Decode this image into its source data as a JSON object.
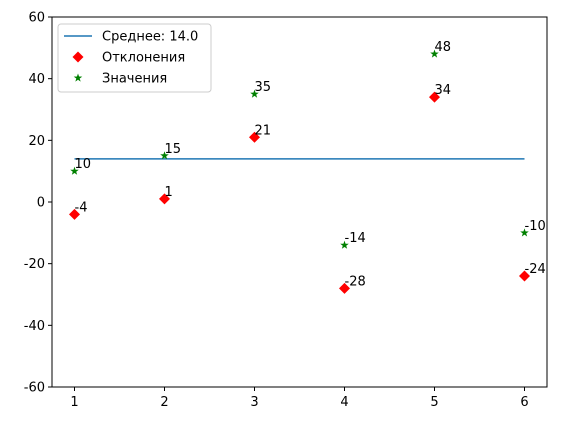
{
  "chart_data": {
    "type": "line",
    "x": [
      1,
      2,
      3,
      4,
      5,
      6
    ],
    "series": [
      {
        "name": "Среднее: 14.0",
        "color": "#1f77b4",
        "marker": "none",
        "values": [
          14,
          14,
          14,
          14,
          14,
          14
        ]
      },
      {
        "name": "Отклонения",
        "color": "#ff0000",
        "marker": "diamond",
        "labels": true,
        "values": [
          -4,
          1,
          21,
          -28,
          34,
          -24
        ]
      },
      {
        "name": "Значения",
        "color": "#008000",
        "marker": "star",
        "labels": true,
        "values": [
          10,
          15,
          35,
          -14,
          48,
          -10
        ]
      }
    ],
    "xlim": [
      0.75,
      6.25
    ],
    "xticks": [
      1,
      2,
      3,
      4,
      5,
      6
    ],
    "ylim": [
      -60,
      60
    ],
    "yticks": [
      -60,
      -40,
      -20,
      0,
      20,
      40,
      60
    ],
    "grid": false,
    "legend": "upper left"
  }
}
